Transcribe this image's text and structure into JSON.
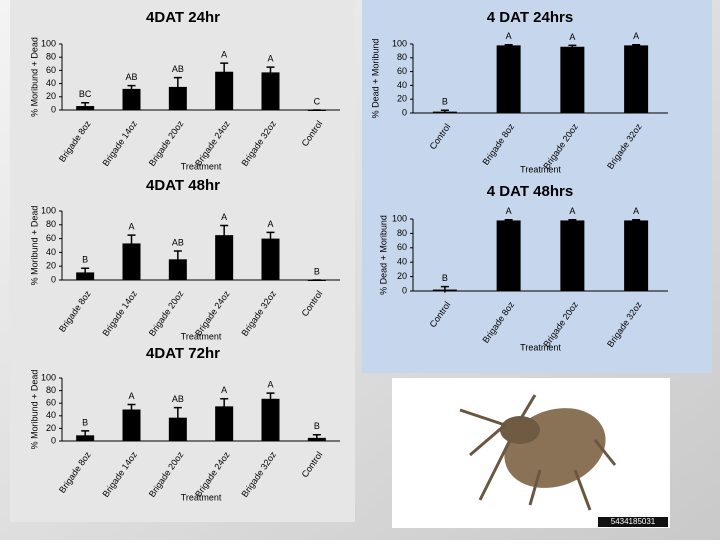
{
  "chart_data": [
    {
      "type": "bar",
      "title": "4DAT 24hr",
      "y_label": "% Moribund + Dead",
      "x_label": "Treatment",
      "categories": [
        "Brigade 8oz",
        "Brigade 14oz",
        "Brigade 20oz",
        "Brigade 24oz",
        "Brigade 32oz",
        "Control"
      ],
      "values": [
        6,
        32,
        35,
        58,
        57,
        0
      ],
      "errors": [
        5,
        5,
        14,
        13,
        8,
        0
      ],
      "annotations": [
        "BC",
        "AB",
        "AB",
        "A",
        "A",
        "C"
      ],
      "color": "#000000",
      "ylim": [
        0,
        100
      ],
      "yticks": [
        0,
        20,
        40,
        60,
        80,
        100
      ]
    },
    {
      "type": "bar",
      "title": "4 DAT 24hrs",
      "y_label": "% Dead + Moribund",
      "x_label": "Treatment",
      "categories": [
        "Control",
        "Brigade 8oz",
        "Brigade 20oz",
        "Brigade 32oz"
      ],
      "values": [
        2,
        98,
        96,
        98
      ],
      "errors": [
        2,
        1,
        2,
        1
      ],
      "annotations": [
        "B",
        "A",
        "A",
        "A"
      ],
      "color": "#000000",
      "ylim": [
        0,
        100
      ],
      "yticks": [
        0,
        20,
        40,
        60,
        80,
        100
      ]
    },
    {
      "type": "bar",
      "title": "4DAT 48hr",
      "y_label": "% Moribund + Dead",
      "x_label": "Treatment",
      "categories": [
        "Brigade 8oz",
        "Brigade 14oz",
        "Brigade 20oz",
        "Brigade 24oz",
        "Brigade 32oz",
        "Control"
      ],
      "values": [
        11,
        53,
        30,
        65,
        60,
        0
      ],
      "errors": [
        6,
        12,
        12,
        14,
        9,
        0
      ],
      "annotations": [
        "B",
        "A",
        "AB",
        "A",
        "A",
        "B"
      ],
      "color": "#000000",
      "ylim": [
        0,
        100
      ],
      "yticks": [
        0,
        20,
        40,
        60,
        80,
        100
      ]
    },
    {
      "type": "bar",
      "title": "4 DAT 48hrs",
      "y_label": "% Dead + Moribund",
      "x_label": "Treatment",
      "categories": [
        "Control",
        "Brigade 8oz",
        "Brigade 20oz",
        "Brigade 32oz"
      ],
      "values": [
        2,
        98,
        98,
        98
      ],
      "errors": [
        4,
        1,
        1,
        1
      ],
      "annotations": [
        "B",
        "A",
        "A",
        "A"
      ],
      "color": "#000000",
      "ylim": [
        0,
        100
      ],
      "yticks": [
        0,
        20,
        40,
        60,
        80,
        100
      ]
    },
    {
      "type": "bar",
      "title": "4DAT 72hr",
      "y_label": "% Moribund + Dead",
      "x_label": "Treatment",
      "categories": [
        "Brigade 8oz",
        "Brigade 14oz",
        "Brigade 20oz",
        "Brigade 24oz",
        "Brigade 32oz",
        "Control"
      ],
      "values": [
        9,
        50,
        37,
        55,
        67,
        5
      ],
      "errors": [
        7,
        8,
        16,
        12,
        9,
        5
      ],
      "annotations": [
        "B",
        "A",
        "AB",
        "A",
        "A",
        "B"
      ],
      "color": "#000000",
      "ylim": [
        0,
        100
      ],
      "yticks": [
        0,
        20,
        40,
        60,
        80,
        100
      ]
    }
  ],
  "image": {
    "caption": "5434185031"
  }
}
